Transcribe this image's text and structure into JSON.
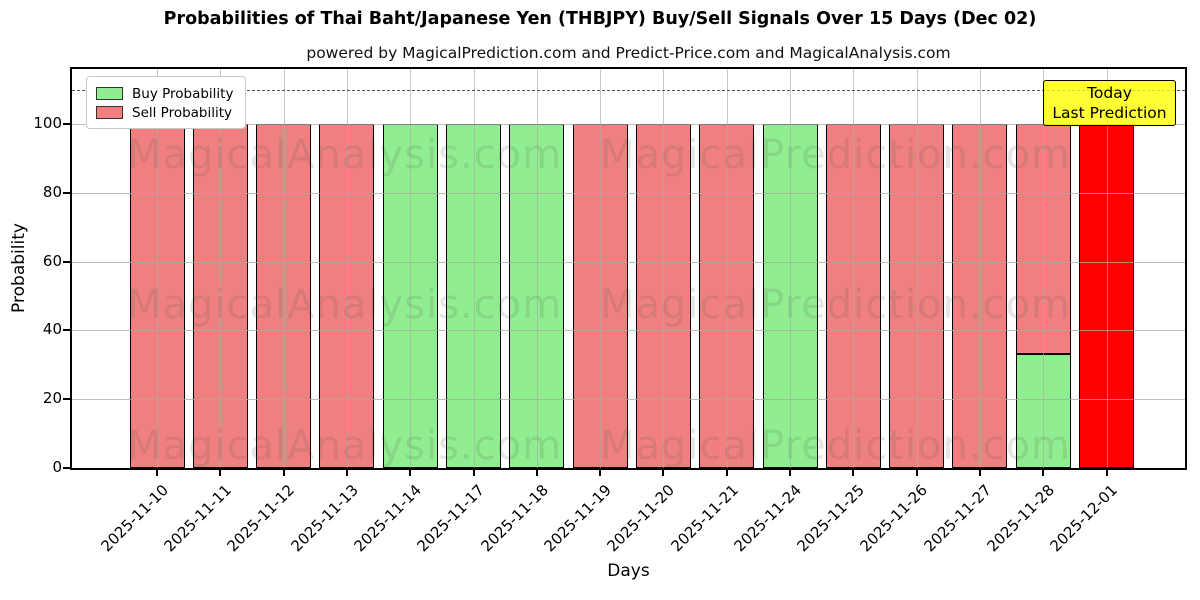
{
  "chart_data": {
    "type": "bar",
    "stacked": true,
    "title": "Probabilities of Thai Baht/Japanese Yen (THBJPY) Buy/Sell Signals Over 15 Days (Dec 02)",
    "subtitle": "powered by MagicalPrediction.com and Predict-Price.com and MagicalAnalysis.com",
    "xlabel": "Days",
    "ylabel": "Probability",
    "ylim": [
      0,
      116
    ],
    "yticks": [
      0,
      20,
      40,
      60,
      80,
      100
    ],
    "grid": true,
    "dashed_line_y": 110,
    "legend_position": "upper-left",
    "legend": {
      "entries": [
        {
          "label": "Buy Probability",
          "color": "#90EE90"
        },
        {
          "label": "Sell Probability",
          "color": "#F08080"
        }
      ]
    },
    "annotation": {
      "lines": [
        "Today",
        "Last Prediction"
      ],
      "bg_color": "#FFFF00"
    },
    "categories": [
      "2025-11-10",
      "2025-11-11",
      "2025-11-12",
      "2025-11-13",
      "2025-11-14",
      "2025-11-17",
      "2025-11-18",
      "2025-11-19",
      "2025-11-20",
      "2025-11-21",
      "2025-11-24",
      "2025-11-25",
      "2025-11-26",
      "2025-11-27",
      "2025-11-28",
      "2025-12-01"
    ],
    "series": [
      {
        "name": "Buy Probability",
        "color": "#90EE90",
        "values": [
          0,
          0,
          0,
          0,
          100,
          100,
          100,
          0,
          0,
          0,
          100,
          0,
          0,
          0,
          33,
          0
        ]
      },
      {
        "name": "Sell Probability",
        "color": "#F08080",
        "values": [
          100,
          100,
          100,
          100,
          0,
          0,
          0,
          100,
          100,
          100,
          0,
          100,
          100,
          100,
          67,
          0
        ]
      },
      {
        "name": "Today Last Prediction (Sell)",
        "color": "#FF0000",
        "values": [
          0,
          0,
          0,
          0,
          0,
          0,
          0,
          0,
          0,
          0,
          0,
          0,
          0,
          0,
          0,
          100
        ]
      }
    ],
    "watermarks": [
      "MagicalAnalysis.com",
      "MagicalPrediction.com"
    ],
    "colors": {
      "buy": "#90EE90",
      "sell": "#F08080",
      "today_sell": "#FF0000",
      "bar_edge": "#000000",
      "grid": "#AAAAAA",
      "annotation_bg": "#FFFF00"
    }
  }
}
